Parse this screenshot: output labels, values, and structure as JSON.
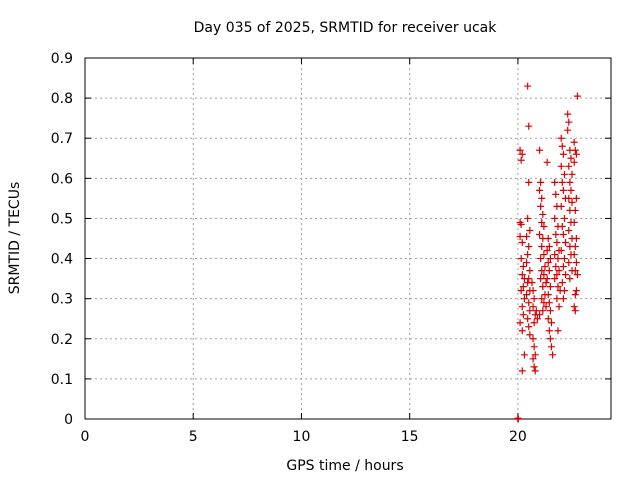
{
  "chart_data": {
    "type": "scatter",
    "title": "Day 035 of 2025, SRMTID for receiver ucak",
    "xlabel": "GPS time / hours",
    "ylabel": "SRMTID / TECUs",
    "xlim": [
      0,
      24.3
    ],
    "ylim": [
      0,
      0.9
    ],
    "xticks": [
      0,
      5,
      10,
      15,
      20
    ],
    "xtick_labels": [
      "0",
      "5",
      "10",
      "15",
      "20"
    ],
    "yticks": [
      0,
      0.1,
      0.2,
      0.3,
      0.4,
      0.5,
      0.6,
      0.7,
      0.8,
      0.9
    ],
    "ytick_labels": [
      "0",
      "0.1",
      "0.2",
      "0.3",
      "0.4",
      "0.5",
      "0.6",
      "0.7",
      "0.8",
      "0.9"
    ],
    "grid": true,
    "marker": "+",
    "color": "#dd0000",
    "series": [
      {
        "name": "SRMTID",
        "points": [
          [
            20.0,
            0.0
          ],
          [
            20.0,
            0.002
          ],
          [
            20.02,
            0.0
          ],
          [
            20.1,
            0.67
          ],
          [
            20.15,
            0.645
          ],
          [
            20.2,
            0.66
          ],
          [
            20.1,
            0.49
          ],
          [
            20.15,
            0.485
          ],
          [
            20.1,
            0.455
          ],
          [
            20.2,
            0.44
          ],
          [
            20.15,
            0.4
          ],
          [
            20.25,
            0.38
          ],
          [
            20.2,
            0.36
          ],
          [
            20.3,
            0.35
          ],
          [
            20.25,
            0.33
          ],
          [
            20.15,
            0.32
          ],
          [
            20.3,
            0.3
          ],
          [
            20.2,
            0.28
          ],
          [
            20.25,
            0.26
          ],
          [
            20.1,
            0.24
          ],
          [
            20.2,
            0.22
          ],
          [
            20.3,
            0.16
          ],
          [
            20.2,
            0.12
          ],
          [
            20.45,
            0.83
          ],
          [
            20.5,
            0.73
          ],
          [
            20.5,
            0.59
          ],
          [
            20.45,
            0.5
          ],
          [
            20.55,
            0.47
          ],
          [
            20.4,
            0.455
          ],
          [
            20.5,
            0.43
          ],
          [
            20.45,
            0.41
          ],
          [
            20.4,
            0.39
          ],
          [
            20.55,
            0.37
          ],
          [
            20.5,
            0.35
          ],
          [
            20.45,
            0.34
          ],
          [
            20.55,
            0.32
          ],
          [
            20.4,
            0.31
          ],
          [
            20.5,
            0.29
          ],
          [
            20.55,
            0.27
          ],
          [
            20.45,
            0.25
          ],
          [
            20.5,
            0.23
          ],
          [
            20.55,
            0.21
          ],
          [
            20.65,
            0.34
          ],
          [
            20.7,
            0.32
          ],
          [
            20.75,
            0.3
          ],
          [
            20.7,
            0.28
          ],
          [
            20.8,
            0.26
          ],
          [
            20.75,
            0.24
          ],
          [
            20.7,
            0.2
          ],
          [
            20.75,
            0.18
          ],
          [
            20.8,
            0.16
          ],
          [
            20.7,
            0.15
          ],
          [
            20.75,
            0.13
          ],
          [
            20.8,
            0.12
          ],
          [
            20.85,
            0.27
          ],
          [
            20.9,
            0.25
          ],
          [
            21.0,
            0.67
          ],
          [
            21.05,
            0.59
          ],
          [
            21.0,
            0.57
          ],
          [
            21.1,
            0.55
          ],
          [
            21.05,
            0.53
          ],
          [
            21.15,
            0.51
          ],
          [
            21.1,
            0.49
          ],
          [
            21.2,
            0.48
          ],
          [
            21.0,
            0.46
          ],
          [
            21.15,
            0.45
          ],
          [
            21.1,
            0.43
          ],
          [
            21.2,
            0.41
          ],
          [
            21.05,
            0.4
          ],
          [
            21.25,
            0.38
          ],
          [
            21.1,
            0.37
          ],
          [
            21.2,
            0.36
          ],
          [
            21.05,
            0.35
          ],
          [
            21.3,
            0.34
          ],
          [
            21.15,
            0.33
          ],
          [
            21.25,
            0.31
          ],
          [
            21.1,
            0.3
          ],
          [
            21.2,
            0.29
          ],
          [
            21.3,
            0.28
          ],
          [
            21.15,
            0.27
          ],
          [
            21.0,
            0.26
          ],
          [
            21.35,
            0.64
          ],
          [
            21.4,
            0.45
          ],
          [
            21.45,
            0.43
          ],
          [
            21.35,
            0.42
          ],
          [
            21.5,
            0.4
          ],
          [
            21.4,
            0.39
          ],
          [
            21.45,
            0.37
          ],
          [
            21.35,
            0.35
          ],
          [
            21.5,
            0.33
          ],
          [
            21.4,
            0.31
          ],
          [
            21.45,
            0.29
          ],
          [
            21.5,
            0.27
          ],
          [
            21.4,
            0.25
          ],
          [
            21.55,
            0.24
          ],
          [
            21.45,
            0.22
          ],
          [
            21.5,
            0.2
          ],
          [
            21.55,
            0.18
          ],
          [
            21.6,
            0.16
          ],
          [
            21.7,
            0.59
          ],
          [
            21.75,
            0.56
          ],
          [
            21.8,
            0.53
          ],
          [
            21.7,
            0.5
          ],
          [
            21.85,
            0.48
          ],
          [
            21.75,
            0.46
          ],
          [
            21.8,
            0.44
          ],
          [
            21.9,
            0.42
          ],
          [
            21.7,
            0.41
          ],
          [
            21.85,
            0.4
          ],
          [
            21.75,
            0.38
          ],
          [
            21.9,
            0.37
          ],
          [
            21.8,
            0.36
          ],
          [
            21.7,
            0.35
          ],
          [
            21.85,
            0.33
          ],
          [
            21.95,
            0.32
          ],
          [
            21.8,
            0.3
          ],
          [
            21.9,
            0.28
          ],
          [
            21.85,
            0.22
          ],
          [
            22.0,
            0.7
          ],
          [
            22.05,
            0.68
          ],
          [
            22.1,
            0.66
          ],
          [
            22.0,
            0.63
          ],
          [
            22.15,
            0.61
          ],
          [
            22.05,
            0.59
          ],
          [
            22.1,
            0.57
          ],
          [
            22.2,
            0.55
          ],
          [
            22.0,
            0.53
          ],
          [
            22.15,
            0.5
          ],
          [
            22.05,
            0.48
          ],
          [
            22.1,
            0.46
          ],
          [
            22.2,
            0.44
          ],
          [
            22.0,
            0.42
          ],
          [
            22.15,
            0.4
          ],
          [
            22.1,
            0.38
          ],
          [
            22.2,
            0.36
          ],
          [
            22.05,
            0.34
          ],
          [
            22.15,
            0.32
          ],
          [
            22.1,
            0.3
          ],
          [
            22.3,
            0.76
          ],
          [
            22.35,
            0.74
          ],
          [
            22.3,
            0.72
          ],
          [
            22.4,
            0.67
          ],
          [
            22.45,
            0.65
          ],
          [
            22.35,
            0.63
          ],
          [
            22.5,
            0.61
          ],
          [
            22.4,
            0.59
          ],
          [
            22.45,
            0.57
          ],
          [
            22.35,
            0.55
          ],
          [
            22.5,
            0.54
          ],
          [
            22.4,
            0.52
          ],
          [
            22.45,
            0.49
          ],
          [
            22.35,
            0.47
          ],
          [
            22.5,
            0.45
          ],
          [
            22.4,
            0.43
          ],
          [
            22.45,
            0.41
          ],
          [
            22.35,
            0.39
          ],
          [
            22.5,
            0.37
          ],
          [
            22.4,
            0.35
          ],
          [
            22.6,
            0.69
          ],
          [
            22.65,
            0.67
          ],
          [
            22.7,
            0.66
          ],
          [
            22.6,
            0.64
          ],
          [
            22.7,
            0.55
          ],
          [
            22.65,
            0.52
          ],
          [
            22.6,
            0.49
          ],
          [
            22.7,
            0.45
          ],
          [
            22.65,
            0.43
          ],
          [
            22.6,
            0.41
          ],
          [
            22.7,
            0.39
          ],
          [
            22.65,
            0.37
          ],
          [
            22.75,
            0.36
          ],
          [
            22.7,
            0.32
          ],
          [
            22.65,
            0.31
          ],
          [
            22.6,
            0.28
          ],
          [
            22.65,
            0.27
          ],
          [
            22.75,
            0.805
          ]
        ]
      }
    ]
  }
}
